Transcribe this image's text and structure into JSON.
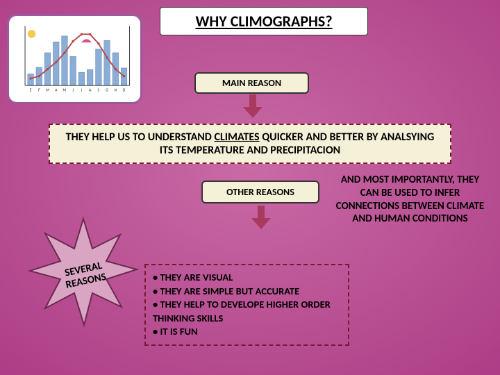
{
  "colors": {
    "bg_top": "#c96aa5",
    "bg_bottom": "#ad3d86",
    "box_fill": "#f5f0d8",
    "dash_border": "#7a1732",
    "star_fill": "#d9a5c2",
    "star_stroke": "#6b2a50",
    "arrow_fill": "#a83a5f",
    "climograph_border": "#9b5a9b",
    "bar_color": "#8aaed6",
    "line_color": "#b54a4a"
  },
  "title": "WHY CLIMOGRAPHS?",
  "main_reason_label": "MAIN REASON",
  "main_text_pre": "THEY HELP US TO UNDERSTAND ",
  "main_text_underlined": "CLIMATES",
  "main_text_post": "  QUICKER AND BETTER BY ANALSYING ITS TEMPERATURE AND PRECIPITACION",
  "other_reasons_label": "OTHER REASONS",
  "right_text": "AND MOST IMPORTANTLY, THEY CAN BE USED TO INFER CONNECTIONS BETWEEN CLIMATE AND HUMAN CONDITIONS",
  "star_line1": "SEVERAL",
  "star_line2": "REASONS",
  "bullets": [
    "• THEY  ARE VISUAL",
    "• THEY ARE SIMPLE BUT ACCURATE",
    "• THEY HELP TO DEVELOPE HIGHER ORDER THINKING SKILLS",
    "• IT IS FUN"
  ],
  "climograph": {
    "type": "bar+line",
    "months": [
      "E",
      "F",
      "M",
      "A",
      "M",
      "J",
      "J",
      "A",
      "S",
      "O",
      "N",
      "D"
    ],
    "precip": [
      16,
      25,
      45,
      60,
      68,
      40,
      18,
      22,
      50,
      62,
      45,
      24
    ],
    "temp": [
      3,
      4,
      7,
      10,
      14,
      19,
      22,
      22,
      18,
      12,
      7,
      4
    ],
    "y_precip_max": 80,
    "y_temp_max": 25,
    "bar_color": "#8aaed6",
    "line_color": "#b54a4a",
    "bg": "#ffffff"
  }
}
